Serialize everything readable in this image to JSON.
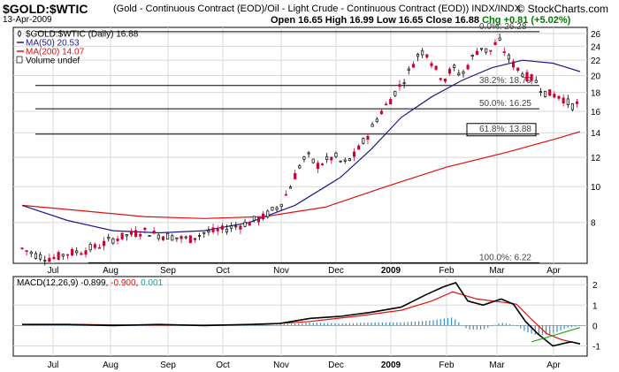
{
  "header": {
    "symbol": "$GOLD:$WTIC",
    "description": "(Gold - Continuous Contract (EOD)/Oil - Light Crude - Continuous Contract (EOD)) INDX/INDX",
    "brand": "© StockCharts.com",
    "date": "13-Apr-2009",
    "ohlc": "Open 16.65  High 16.99  Low 16.65  Close 16.88",
    "change": "Chg +0.81 (+5.02%)"
  },
  "legend": {
    "main": "$GOLD:$WTIC (Daily) 16.88",
    "ma50": "MA(50) 20.53",
    "ma200": "MA(200) 14.07",
    "volume": "Volume undef"
  },
  "colors": {
    "price_up": "#000000",
    "price_down": "#cc0033",
    "ma50": "#1a1a8c",
    "ma200": "#e01010",
    "macd": "#000000",
    "signal": "#e01010",
    "histogram": "#3a8fd0",
    "histogram_label": "#1a9a9a",
    "trendline": "#22aa22",
    "grid": "#d8d8d8"
  },
  "chart_data": [
    {
      "type": "candlestick",
      "x_labels": [
        "Jul",
        "Aug",
        "Sep",
        "Oct",
        "Nov",
        "Dec",
        "2009",
        "Feb",
        "Mar",
        "Apr"
      ],
      "y_ticks": [
        8,
        10,
        12,
        14,
        16,
        18,
        20,
        22,
        24,
        26
      ],
      "y_scale": "log",
      "ylim": [
        6.2,
        27
      ],
      "price_series": {
        "name": "$GOLD:$WTIC (Daily)",
        "points": [
          [
            0,
            6.8
          ],
          [
            5,
            6.5
          ],
          [
            10,
            6.4
          ],
          [
            15,
            6.6
          ],
          [
            20,
            6.7
          ],
          [
            25,
            6.9
          ],
          [
            30,
            7.2
          ],
          [
            35,
            7.4
          ],
          [
            40,
            7.6
          ],
          [
            45,
            7.4
          ],
          [
            50,
            7.3
          ],
          [
            55,
            7.2
          ],
          [
            60,
            7.5
          ],
          [
            65,
            7.6
          ],
          [
            70,
            7.8
          ],
          [
            75,
            8.0
          ],
          [
            80,
            8.3
          ],
          [
            85,
            8.9
          ],
          [
            88,
            9.8
          ],
          [
            91,
            11.2
          ],
          [
            94,
            12.2
          ],
          [
            97,
            11.4
          ],
          [
            100,
            11.7
          ],
          [
            103,
            12.1
          ],
          [
            106,
            11.5
          ],
          [
            109,
            12.0
          ],
          [
            112,
            13.0
          ],
          [
            115,
            14.2
          ],
          [
            118,
            15.8
          ],
          [
            121,
            17.0
          ],
          [
            124,
            18.5
          ],
          [
            127,
            20.0
          ],
          [
            130,
            22.5
          ],
          [
            133,
            23.5
          ],
          [
            136,
            21.0
          ],
          [
            139,
            19.5
          ],
          [
            142,
            21.0
          ],
          [
            145,
            20.0
          ],
          [
            148,
            22.0
          ],
          [
            151,
            24.0
          ],
          [
            154,
            23.0
          ],
          [
            157,
            25.0
          ],
          [
            160,
            22.5
          ],
          [
            163,
            21.0
          ],
          [
            166,
            20.0
          ],
          [
            169,
            19.5
          ],
          [
            172,
            18.0
          ],
          [
            175,
            17.8
          ],
          [
            178,
            17.5
          ],
          [
            181,
            16.5
          ],
          [
            184,
            16.9
          ]
        ]
      },
      "ma50": {
        "name": "MA(50)",
        "points": [
          [
            0,
            8.9
          ],
          [
            15,
            8.1
          ],
          [
            30,
            7.6
          ],
          [
            45,
            7.5
          ],
          [
            60,
            7.6
          ],
          [
            75,
            8.0
          ],
          [
            90,
            8.9
          ],
          [
            105,
            10.6
          ],
          [
            115,
            12.6
          ],
          [
            125,
            15.4
          ],
          [
            135,
            17.5
          ],
          [
            145,
            19.4
          ],
          [
            155,
            21.0
          ],
          [
            165,
            22.0
          ],
          [
            175,
            21.6
          ],
          [
            184,
            20.5
          ]
        ]
      },
      "ma200": {
        "name": "MA(200)",
        "points": [
          [
            0,
            8.9
          ],
          [
            20,
            8.6
          ],
          [
            40,
            8.3
          ],
          [
            60,
            8.2
          ],
          [
            80,
            8.3
          ],
          [
            100,
            8.8
          ],
          [
            120,
            10.0
          ],
          [
            140,
            11.3
          ],
          [
            160,
            12.4
          ],
          [
            175,
            13.4
          ],
          [
            184,
            14.1
          ]
        ]
      },
      "fibonacci": [
        {
          "label": "0.0%: 26.28",
          "value": 26.28
        },
        {
          "label": "38.2%: 18.79",
          "value": 18.79
        },
        {
          "label": "50.0%: 16.25",
          "value": 16.25
        },
        {
          "label": "61.8%: 13.88",
          "value": 13.88
        },
        {
          "label": "100.0%: 6.22",
          "value": 6.22
        }
      ]
    },
    {
      "type": "line",
      "title": "MACD(12,26,9) -0.899, -0.900, 0.001",
      "title_parts": [
        "MACD(12,26,9) -0.899, ",
        "-0.900",
        ", ",
        "0.001"
      ],
      "y_ticks": [
        2,
        1,
        0,
        -1
      ],
      "ylim": [
        -1.5,
        2.4
      ],
      "series": [
        {
          "name": "MACD",
          "points": [
            [
              0,
              0.05
            ],
            [
              15,
              0.05
            ],
            [
              30,
              0.0
            ],
            [
              45,
              0.05
            ],
            [
              60,
              0.0
            ],
            [
              75,
              0.05
            ],
            [
              85,
              0.1
            ],
            [
              95,
              0.35
            ],
            [
              105,
              0.45
            ],
            [
              115,
              0.65
            ],
            [
              125,
              0.9
            ],
            [
              133,
              1.5
            ],
            [
              139,
              1.9
            ],
            [
              143,
              2.1
            ],
            [
              147,
              1.2
            ],
            [
              152,
              1.0
            ],
            [
              158,
              1.3
            ],
            [
              162,
              1.05
            ],
            [
              166,
              0.2
            ],
            [
              170,
              -0.4
            ],
            [
              175,
              -1.0
            ],
            [
              181,
              -0.8
            ],
            [
              184,
              -0.9
            ]
          ]
        },
        {
          "name": "Signal",
          "points": [
            [
              0,
              0.05
            ],
            [
              20,
              0.05
            ],
            [
              40,
              0.02
            ],
            [
              60,
              0.02
            ],
            [
              80,
              0.05
            ],
            [
              95,
              0.2
            ],
            [
              110,
              0.45
            ],
            [
              125,
              0.75
            ],
            [
              135,
              1.2
            ],
            [
              142,
              1.65
            ],
            [
              150,
              1.3
            ],
            [
              158,
              1.15
            ],
            [
              163,
              1.05
            ],
            [
              168,
              0.3
            ],
            [
              173,
              -0.4
            ],
            [
              178,
              -0.7
            ],
            [
              184,
              -0.9
            ]
          ]
        }
      ],
      "histogram": [
        [
          0,
          0.0
        ],
        [
          20,
          0.0
        ],
        [
          40,
          0.0
        ],
        [
          60,
          0.0
        ],
        [
          80,
          0.0
        ],
        [
          95,
          0.15
        ],
        [
          105,
          0.1
        ],
        [
          115,
          0.15
        ],
        [
          125,
          0.15
        ],
        [
          135,
          0.25
        ],
        [
          142,
          0.4
        ],
        [
          147,
          -0.2
        ],
        [
          152,
          -0.2
        ],
        [
          158,
          0.15
        ],
        [
          163,
          0.0
        ],
        [
          166,
          -0.3
        ],
        [
          170,
          -0.5
        ],
        [
          175,
          -0.4
        ],
        [
          180,
          -0.1
        ],
        [
          184,
          0.0
        ]
      ]
    }
  ]
}
